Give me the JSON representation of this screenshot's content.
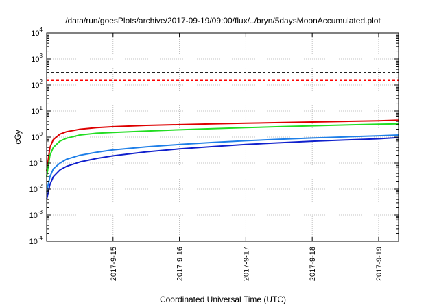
{
  "chart_data": {
    "type": "line",
    "title": "/data/run/goesPlots/archive/2017-09-19/09:00/flux/../bryn/5daysMoonAccumulated.plot",
    "xlabel": "Coordinated Universal Time (UTC)",
    "ylabel": "cGy",
    "yscale": "log",
    "ylim": [
      0.0001,
      10000
    ],
    "xlim": [
      0,
      5.3
    ],
    "x_tick_values": [
      1,
      2,
      3,
      4,
      5
    ],
    "x_tick_labels": [
      "2017-9-15",
      "2017-9-16",
      "2017-9-17",
      "2017-9-18",
      "2017-9-19"
    ],
    "y_tick_values": [
      0.0001,
      0.001,
      0.01,
      0.1,
      1,
      10,
      100,
      1000,
      10000
    ],
    "y_tick_labels": [
      {
        "base": "10",
        "exp": "-4"
      },
      {
        "base": "10",
        "exp": "-3"
      },
      {
        "base": "10",
        "exp": "-2"
      },
      {
        "base": "10",
        "exp": "-1"
      },
      {
        "base": "10",
        "exp": "0"
      },
      {
        "base": "10",
        "exp": "1"
      },
      {
        "base": "10",
        "exp": "2"
      },
      {
        "base": "10",
        "exp": "3"
      },
      {
        "base": "10",
        "exp": "4"
      }
    ],
    "grid": true,
    "reference_lines": [
      {
        "y": 300,
        "color": "#000000",
        "style": "dashed"
      },
      {
        "y": 150,
        "color": "#ff0000",
        "style": "dashed"
      }
    ],
    "series": [
      {
        "color": "#dd0000",
        "x": [
          0,
          0.05,
          0.1,
          0.2,
          0.3,
          0.5,
          0.75,
          1,
          1.5,
          2,
          2.5,
          3,
          3.5,
          4,
          4.5,
          5,
          5.3
        ],
        "y": [
          0.05,
          0.4,
          0.8,
          1.3,
          1.6,
          2.0,
          2.3,
          2.5,
          2.8,
          3.0,
          3.2,
          3.4,
          3.6,
          3.8,
          4.0,
          4.2,
          4.5
        ]
      },
      {
        "color": "#22dd22",
        "x": [
          0,
          0.05,
          0.1,
          0.2,
          0.3,
          0.5,
          0.75,
          1,
          1.5,
          2,
          2.5,
          3,
          3.5,
          4,
          4.5,
          5,
          5.3
        ],
        "y": [
          0.03,
          0.2,
          0.4,
          0.7,
          0.9,
          1.2,
          1.4,
          1.5,
          1.7,
          1.9,
          2.1,
          2.3,
          2.5,
          2.7,
          2.9,
          3.1,
          3.2
        ]
      },
      {
        "color": "#1e7fe8",
        "x": [
          0,
          0.05,
          0.1,
          0.2,
          0.3,
          0.5,
          0.75,
          1,
          1.5,
          2,
          2.5,
          3,
          3.5,
          4,
          4.5,
          5,
          5.3
        ],
        "y": [
          0.008,
          0.03,
          0.06,
          0.1,
          0.14,
          0.2,
          0.26,
          0.32,
          0.42,
          0.52,
          0.62,
          0.72,
          0.82,
          0.92,
          1.02,
          1.12,
          1.2
        ]
      },
      {
        "color": "#1020cc",
        "x": [
          0,
          0.05,
          0.1,
          0.2,
          0.3,
          0.5,
          0.75,
          1,
          1.5,
          2,
          2.5,
          3,
          3.5,
          4,
          4.5,
          5,
          5.3
        ],
        "y": [
          0.004,
          0.015,
          0.03,
          0.055,
          0.075,
          0.11,
          0.15,
          0.19,
          0.27,
          0.35,
          0.43,
          0.52,
          0.6,
          0.69,
          0.77,
          0.86,
          0.95
        ]
      }
    ]
  }
}
